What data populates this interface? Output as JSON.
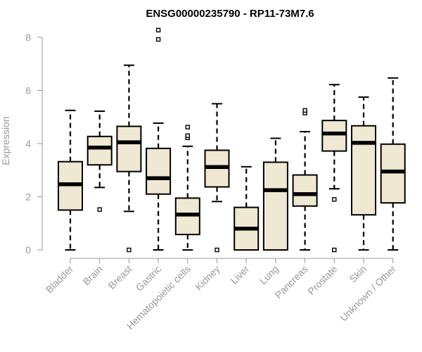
{
  "chart_data": {
    "type": "box",
    "title": "ENSG00000235790 - RP11-73M7.6",
    "xlabel": "",
    "ylabel": "Expression",
    "ylim": [
      0,
      8.3
    ],
    "yticks": [
      0,
      2,
      4,
      6,
      8
    ],
    "grid": false,
    "legend": "none",
    "box_fill": "#efe8d2",
    "box_stroke": "#000000",
    "axis_color": "#999999",
    "categories": [
      "Bladder",
      "Brain",
      "Breast",
      "Gastric",
      "Hematopoietic cells",
      "Kidney",
      "Liver",
      "Lung",
      "Pancreas",
      "Prostate",
      "Skin",
      "Unknown / Other"
    ],
    "boxes": [
      {
        "category": "Bladder",
        "min": 0.0,
        "q1": 1.5,
        "median": 2.47,
        "q3": 3.32,
        "max": 5.25,
        "outliers": []
      },
      {
        "category": "Brain",
        "min": 2.35,
        "q1": 3.2,
        "median": 3.85,
        "q3": 4.27,
        "max": 5.22,
        "outliers": [
          1.52
        ]
      },
      {
        "category": "Breast",
        "min": 1.45,
        "q1": 2.95,
        "median": 4.05,
        "q3": 4.65,
        "max": 6.95,
        "outliers": [
          0.0
        ]
      },
      {
        "category": "Gastric",
        "min": 0.0,
        "q1": 2.1,
        "median": 2.7,
        "q3": 3.82,
        "max": 4.77,
        "outliers": [
          7.92,
          8.27
        ]
      },
      {
        "category": "Hematopoietic cells",
        "min": 0.0,
        "q1": 0.58,
        "median": 1.33,
        "q3": 1.95,
        "max": 3.9,
        "outliers": [
          4.22,
          4.3,
          4.62
        ]
      },
      {
        "category": "Kidney",
        "min": 1.82,
        "q1": 2.37,
        "median": 3.12,
        "q3": 3.75,
        "max": 5.5,
        "outliers": [
          0.0
        ]
      },
      {
        "category": "Liver",
        "min": 0.0,
        "q1": 0.0,
        "median": 0.8,
        "q3": 1.6,
        "max": 3.13,
        "outliers": []
      },
      {
        "category": "Lung",
        "min": 0.0,
        "q1": 0.0,
        "median": 2.25,
        "q3": 3.3,
        "max": 4.2,
        "outliers": []
      },
      {
        "category": "Pancreas",
        "min": 0.0,
        "q1": 1.65,
        "median": 2.1,
        "q3": 2.82,
        "max": 4.45,
        "outliers": [
          5.15,
          5.25
        ]
      },
      {
        "category": "Prostate",
        "min": 2.3,
        "q1": 3.72,
        "median": 4.38,
        "q3": 4.87,
        "max": 6.22,
        "outliers": [
          1.9,
          0.0
        ]
      },
      {
        "category": "Skin",
        "min": 0.0,
        "q1": 1.32,
        "median": 4.03,
        "q3": 4.67,
        "max": 5.75,
        "outliers": []
      },
      {
        "category": "Unknown / Other",
        "min": 0.0,
        "q1": 1.77,
        "median": 2.95,
        "q3": 3.98,
        "max": 6.47,
        "outliers": []
      }
    ]
  }
}
